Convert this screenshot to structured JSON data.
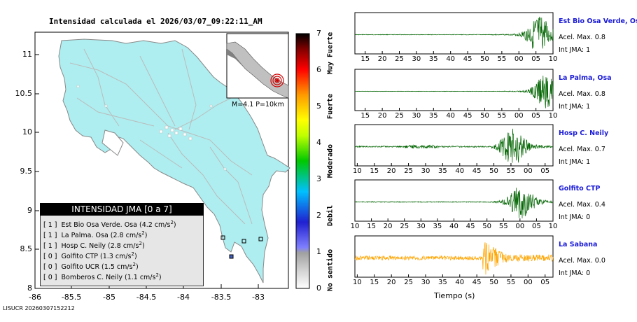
{
  "map": {
    "title": "Intensidad calculada el 2026/03/07_09:22:11_AM",
    "footer": "LISUCR 20260307152212",
    "x_ticks": [
      "-86",
      "-85.5",
      "-85",
      "-84.5",
      "-84",
      "-83.5",
      "-83"
    ],
    "y_ticks": [
      "11",
      "10.5",
      "10",
      "9.5",
      "9",
      "8.5",
      "8"
    ],
    "inset_label": "M=4.1 P=10km",
    "legend": {
      "title": "INTENSIDAD JMA [0 a 7]",
      "rows": [
        {
          "bracket": "[ 1 ]",
          "text": "Est Bio Osa Verde. Osa (4.2 cm/s",
          "sup": "2",
          "end": ")"
        },
        {
          "bracket": "[ 1 ]",
          "text": "La Palma. Osa (2.8 cm/s",
          "sup": "2",
          "end": ")"
        },
        {
          "bracket": "[ 1 ]",
          "text": "Hosp C. Neily (2.8 cm/s",
          "sup": "2",
          "end": ")"
        },
        {
          "bracket": "[ 0 ]",
          "text": "Golfito CTP (1.3 cm/s",
          "sup": "2",
          "end": ")"
        },
        {
          "bracket": "[ 0 ]",
          "text": "Golfito UCR (1.5 cm/s",
          "sup": "2",
          "end": ")"
        },
        {
          "bracket": "[ 0 ]",
          "text": "Bomberos C. Neily (1.1 cm/s",
          "sup": "2",
          "end": ")"
        }
      ]
    }
  },
  "colorbar": {
    "ticks": [
      "0",
      "1",
      "2",
      "3",
      "4",
      "5",
      "6",
      "7"
    ],
    "labels": [
      "No sentido",
      "Debil",
      "Moderado",
      "Fuerte",
      "Muy Fuerte"
    ],
    "colors": [
      "#ffffff",
      "#aaaaaa",
      "#3030ff",
      "#00c8ff",
      "#00c800",
      "#ffff00",
      "#ff8c00",
      "#ff0000",
      "#800000",
      "#000000"
    ]
  },
  "chart_data": {
    "type": "line",
    "xlabel": "Tiempo (s)",
    "series": [
      {
        "name": "Est Bio Osa Verde, Osa",
        "acel_label": "Acel. Max. 0.8",
        "int_label": "Int JMA: 1",
        "x_ticks": [
          "15",
          "20",
          "25",
          "30",
          "35",
          "40",
          "45",
          "50",
          "55",
          "00",
          "05",
          "10"
        ],
        "color": "#006400",
        "quiet": 0.7,
        "onset": 0.69,
        "peak": 0.93,
        "ampl": 1.0
      },
      {
        "name": "La Palma, Osa",
        "acel_label": "Acel. Max. 0.8",
        "int_label": "Int JMA: 1",
        "x_ticks": [
          "15",
          "20",
          "25",
          "30",
          "35",
          "40",
          "45",
          "50",
          "55",
          "00",
          "05",
          "10"
        ],
        "color": "#006400",
        "quiet": 0.5,
        "onset": 0.75,
        "peak": 0.97,
        "ampl": 1.0
      },
      {
        "name": "Hosp C. Neily",
        "acel_label": "Acel. Max. 0.7",
        "int_label": "Int JMA: 1",
        "x_ticks": [
          "10",
          "15",
          "20",
          "25",
          "30",
          "35",
          "40",
          "45",
          "50",
          "55",
          "00",
          "05"
        ],
        "color": "#006400",
        "quiet": 1.6,
        "onset": 0.69,
        "peak": 0.8,
        "ampl": 0.95
      },
      {
        "name": "Golfito CTP",
        "acel_label": "Acel. Max. 0.4",
        "int_label": "Int JMA: 0",
        "x_ticks": [
          "10",
          "15",
          "20",
          "25",
          "30",
          "35",
          "40",
          "45",
          "50",
          "55",
          "00",
          "05",
          "10"
        ],
        "color": "#006400",
        "quiet": 1.0,
        "onset": 0.68,
        "peak": 0.84,
        "ampl": 0.9
      },
      {
        "name": "La Sabana",
        "acel_label": "Acel. Max. 0.0",
        "int_label": "Int JMA: 0",
        "x_ticks": [
          "10",
          "15",
          "20",
          "25",
          "30",
          "35",
          "40",
          "45",
          "50",
          "55",
          "00",
          "05"
        ],
        "color": "#ffa500",
        "quiet": 5.0,
        "onset": 0.66,
        "peak": 0.67,
        "ampl": 0.55
      }
    ]
  }
}
